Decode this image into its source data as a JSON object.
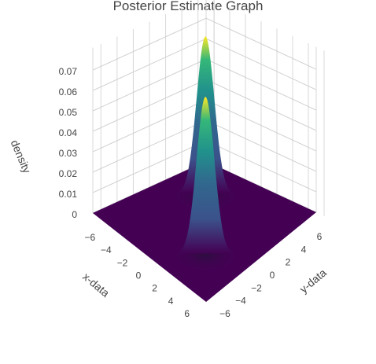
{
  "chart_data": {
    "type": "surface",
    "title": "Posterior Estimate Graph",
    "xlabel": "x-data",
    "ylabel": "y-data",
    "zlabel": "density",
    "x_ticks": [
      "−6",
      "−4",
      "−2",
      "0",
      "2",
      "4",
      "6"
    ],
    "y_ticks": [
      "6",
      "4",
      "2",
      "0",
      "−2",
      "−4",
      "−6"
    ],
    "z_ticks": [
      "0",
      "0.01",
      "0.02",
      "0.03",
      "0.04",
      "0.05",
      "0.06",
      "0.07"
    ],
    "xlim": [
      -7,
      7
    ],
    "ylim": [
      -7,
      7
    ],
    "zlim": [
      0,
      0.077
    ],
    "colorscale": "viridis",
    "colors": [
      "#440154",
      "#31688e",
      "#21918c",
      "#35b779",
      "#fde725"
    ],
    "peaks": [
      {
        "x": -3,
        "y": 3,
        "height": 0.077,
        "sigma": 0.8
      },
      {
        "x": 3,
        "y": -3,
        "height": 0.077,
        "sigma": 0.8
      }
    ]
  }
}
